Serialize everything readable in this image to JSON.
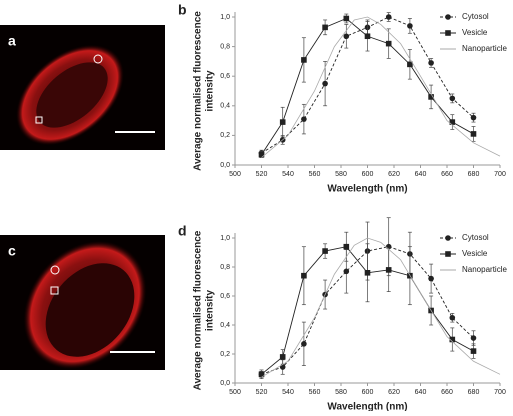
{
  "images": [
    {
      "label": "a"
    },
    {
      "label": "c"
    }
  ],
  "chart_data": [
    {
      "type": "line",
      "panel_label": "b",
      "xlabel": "Wavelength (nm)",
      "ylabel": [
        "Average normalised fluorescence",
        "intensity"
      ],
      "xlim": [
        500,
        700
      ],
      "xticks": [
        500,
        520,
        540,
        560,
        580,
        600,
        620,
        640,
        660,
        680,
        700
      ],
      "ylim": [
        0,
        1
      ],
      "yticks": [
        {
          "value": 0,
          "label": "0,0"
        },
        {
          "value": 0.2,
          "label": "0,2"
        },
        {
          "value": 0.4,
          "label": "0,4"
        },
        {
          "value": 0.6,
          "label": "0,6"
        },
        {
          "value": 0.8,
          "label": "0,8"
        },
        {
          "value": 1,
          "label": "1,0"
        }
      ],
      "legend": "upper right",
      "series": [
        {
          "name": "Cytosol",
          "color": "#222222",
          "marker": "circle",
          "line_style": "dashed",
          "x": [
            520,
            536,
            552,
            568,
            584,
            600,
            616,
            632,
            648,
            664,
            680
          ],
          "values": [
            0.08,
            0.17,
            0.31,
            0.55,
            0.87,
            0.93,
            1.0,
            0.94,
            0.69,
            0.45,
            0.32
          ],
          "errors": [
            0.02,
            0.03,
            0.1,
            0.15,
            0.08,
            0.05,
            0.03,
            0.05,
            0.03,
            0.03,
            0.03
          ]
        },
        {
          "name": "Vesicle",
          "color": "#222222",
          "marker": "square",
          "line_style": "solid",
          "x": [
            520,
            536,
            552,
            568,
            584,
            600,
            616,
            632,
            648,
            664,
            680
          ],
          "values": [
            0.07,
            0.29,
            0.71,
            0.93,
            0.99,
            0.87,
            0.82,
            0.68,
            0.46,
            0.29,
            0.21
          ],
          "errors": [
            0.02,
            0.1,
            0.15,
            0.05,
            0.03,
            0.1,
            0.1,
            0.1,
            0.08,
            0.05,
            0.05
          ]
        },
        {
          "name": "Nanoparticle",
          "color": "#aaaaaa",
          "marker": "none",
          "line_style": "solid",
          "x": [
            520,
            540,
            560,
            575,
            590,
            600,
            610,
            625,
            640,
            660,
            680,
            700
          ],
          "values": [
            0.05,
            0.2,
            0.5,
            0.8,
            0.98,
            1.0,
            0.95,
            0.82,
            0.6,
            0.3,
            0.15,
            0.06
          ]
        }
      ]
    },
    {
      "type": "line",
      "panel_label": "d",
      "xlabel": "Wavelength (nm)",
      "ylabel": [
        "Average normalised fluorescence",
        "intensity"
      ],
      "xlim": [
        500,
        700
      ],
      "xticks": [
        500,
        520,
        540,
        560,
        580,
        600,
        620,
        640,
        660,
        680,
        700
      ],
      "ylim": [
        0,
        1
      ],
      "yticks": [
        {
          "value": 0,
          "label": "0,0"
        },
        {
          "value": 0.2,
          "label": "0,2"
        },
        {
          "value": 0.4,
          "label": "0,4"
        },
        {
          "value": 0.6,
          "label": "0,6"
        },
        {
          "value": 0.8,
          "label": "0,8"
        },
        {
          "value": 1,
          "label": "1,0"
        }
      ],
      "legend": "upper right",
      "series": [
        {
          "name": "Cytosol",
          "color": "#222222",
          "marker": "circle",
          "line_style": "dashed",
          "x": [
            520,
            536,
            552,
            568,
            584,
            600,
            616,
            632,
            648,
            664,
            680
          ],
          "values": [
            0.06,
            0.11,
            0.27,
            0.61,
            0.77,
            0.91,
            0.94,
            0.89,
            0.72,
            0.45,
            0.31
          ],
          "errors": [
            0.02,
            0.05,
            0.15,
            0.1,
            0.15,
            0.2,
            0.2,
            0.15,
            0.1,
            0.03,
            0.05
          ]
        },
        {
          "name": "Vesicle",
          "color": "#222222",
          "marker": "square",
          "line_style": "solid",
          "x": [
            520,
            536,
            552,
            568,
            584,
            600,
            616,
            632,
            648,
            664,
            680
          ],
          "values": [
            0.06,
            0.18,
            0.74,
            0.91,
            0.94,
            0.76,
            0.78,
            0.74,
            0.5,
            0.3,
            0.22
          ],
          "errors": [
            0.03,
            0.05,
            0.2,
            0.05,
            0.1,
            0.2,
            0.15,
            0.2,
            0.1,
            0.08,
            0.05
          ]
        },
        {
          "name": "Nanoparticle",
          "color": "#aaaaaa",
          "marker": "none",
          "line_style": "solid",
          "x": [
            520,
            540,
            560,
            575,
            590,
            600,
            610,
            625,
            640,
            660,
            680,
            700
          ],
          "values": [
            0.04,
            0.15,
            0.45,
            0.75,
            0.95,
            1.0,
            0.97,
            0.85,
            0.62,
            0.32,
            0.15,
            0.06
          ]
        }
      ]
    }
  ]
}
